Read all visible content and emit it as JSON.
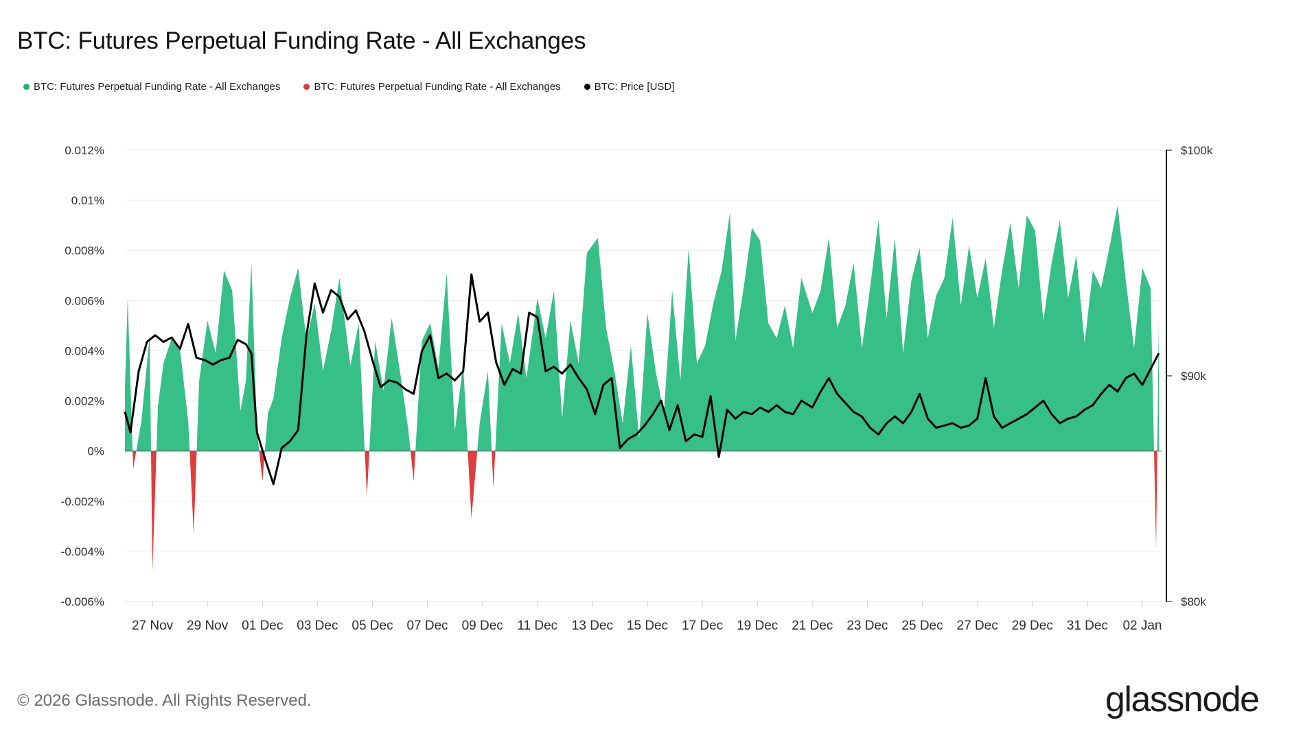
{
  "colors": {
    "positive": "#36bf87",
    "negative": "#e03c3c",
    "price": "#000000",
    "grid": "#ececec"
  },
  "footer": {
    "copyright": "© 2026 Glassnode. All Rights Reserved.",
    "logo": "glassnode"
  },
  "chart_data": {
    "type": "area",
    "title": "BTC: Futures Perpetual Funding Rate - All Exchanges",
    "legend": [
      {
        "label": "BTC: Futures Perpetual Funding Rate - All Exchanges",
        "color": "#23b26d"
      },
      {
        "label": "BTC: Futures Perpetual Funding Rate - All Exchanges",
        "color": "#e03c3c"
      },
      {
        "label": "BTC: Price [USD]",
        "color": "#000000"
      }
    ],
    "x_ticks": [
      "27 Nov",
      "29 Nov",
      "01 Dec",
      "03 Dec",
      "05 Dec",
      "07 Dec",
      "09 Dec",
      "11 Dec",
      "13 Dec",
      "15 Dec",
      "17 Dec",
      "19 Dec",
      "21 Dec",
      "23 Dec",
      "25 Dec",
      "27 Dec",
      "29 Dec",
      "31 Dec",
      "02 Jan"
    ],
    "y_left_ticks": [
      "0.012%",
      "0.01%",
      "0.008%",
      "0.006%",
      "0.004%",
      "0.002%",
      "0%",
      "-0.002%",
      "-0.004%",
      "-0.006%"
    ],
    "y_right_ticks": [
      "$100k",
      "$90k",
      "$80k"
    ],
    "ylim_left": [
      -0.006,
      0.012
    ],
    "ylim_right": [
      80000,
      100000
    ],
    "x_day_range": [
      0,
      37.7
    ],
    "grid": true,
    "funding_rate_series": [
      [
        0.0,
        0.0025
      ],
      [
        0.1,
        0.0061
      ],
      [
        0.3,
        -0.0007
      ],
      [
        0.6,
        0.0012
      ],
      [
        0.9,
        0.0046
      ],
      [
        1.0,
        -0.0048
      ],
      [
        1.2,
        0.0018
      ],
      [
        1.4,
        0.0035
      ],
      [
        1.7,
        0.0045
      ],
      [
        2.0,
        0.0041
      ],
      [
        2.3,
        0.0012
      ],
      [
        2.5,
        -0.0033
      ],
      [
        2.7,
        0.0028
      ],
      [
        3.0,
        0.0052
      ],
      [
        3.3,
        0.0039
      ],
      [
        3.6,
        0.0072
      ],
      [
        3.9,
        0.0064
      ],
      [
        4.2,
        0.0016
      ],
      [
        4.4,
        0.0028
      ],
      [
        4.6,
        0.0075
      ],
      [
        4.8,
        0.0008
      ],
      [
        5.0,
        -0.0012
      ],
      [
        5.2,
        0.0015
      ],
      [
        5.4,
        0.0021
      ],
      [
        5.7,
        0.0045
      ],
      [
        6.0,
        0.0061
      ],
      [
        6.3,
        0.0073
      ],
      [
        6.6,
        0.0044
      ],
      [
        6.9,
        0.0059
      ],
      [
        7.2,
        0.0032
      ],
      [
        7.5,
        0.0048
      ],
      [
        7.8,
        0.0069
      ],
      [
        8.2,
        0.0034
      ],
      [
        8.5,
        0.0051
      ],
      [
        8.8,
        -0.0018
      ],
      [
        9.1,
        0.0044
      ],
      [
        9.4,
        0.0024
      ],
      [
        9.7,
        0.0053
      ],
      [
        10.0,
        0.0032
      ],
      [
        10.3,
        0.0009
      ],
      [
        10.5,
        -0.0012
      ],
      [
        10.8,
        0.0044
      ],
      [
        11.1,
        0.0051
      ],
      [
        11.4,
        0.0033
      ],
      [
        11.7,
        0.0071
      ],
      [
        12.0,
        0.0008
      ],
      [
        12.3,
        0.0035
      ],
      [
        12.6,
        -0.0027
      ],
      [
        12.9,
        0.0011
      ],
      [
        13.2,
        0.0032
      ],
      [
        13.4,
        -0.0015
      ],
      [
        13.7,
        0.0051
      ],
      [
        14.0,
        0.0035
      ],
      [
        14.3,
        0.0055
      ],
      [
        14.6,
        0.0029
      ],
      [
        15.0,
        0.0061
      ],
      [
        15.3,
        0.0045
      ],
      [
        15.6,
        0.0064
      ],
      [
        15.9,
        0.0013
      ],
      [
        16.2,
        0.0052
      ],
      [
        16.5,
        0.0035
      ],
      [
        16.8,
        0.0079
      ],
      [
        17.2,
        0.0085
      ],
      [
        17.5,
        0.0049
      ],
      [
        17.8,
        0.0032
      ],
      [
        18.1,
        0.0011
      ],
      [
        18.4,
        0.0042
      ],
      [
        18.7,
        0.0005
      ],
      [
        19.0,
        0.0055
      ],
      [
        19.3,
        0.0032
      ],
      [
        19.6,
        0.0015
      ],
      [
        19.9,
        0.0064
      ],
      [
        20.2,
        0.0028
      ],
      [
        20.5,
        0.0081
      ],
      [
        20.8,
        0.0035
      ],
      [
        21.1,
        0.0042
      ],
      [
        21.4,
        0.0059
      ],
      [
        21.7,
        0.0072
      ],
      [
        22.0,
        0.0095
      ],
      [
        22.2,
        0.0044
      ],
      [
        22.5,
        0.0065
      ],
      [
        22.8,
        0.0089
      ],
      [
        23.1,
        0.0084
      ],
      [
        23.4,
        0.0051
      ],
      [
        23.7,
        0.0045
      ],
      [
        24.0,
        0.0058
      ],
      [
        24.3,
        0.0041
      ],
      [
        24.6,
        0.0069
      ],
      [
        25.0,
        0.0055
      ],
      [
        25.3,
        0.0064
      ],
      [
        25.6,
        0.0085
      ],
      [
        25.9,
        0.0049
      ],
      [
        26.2,
        0.0058
      ],
      [
        26.5,
        0.0075
      ],
      [
        26.8,
        0.0041
      ],
      [
        27.1,
        0.0065
      ],
      [
        27.4,
        0.0092
      ],
      [
        27.7,
        0.0053
      ],
      [
        28.0,
        0.0085
      ],
      [
        28.3,
        0.0039
      ],
      [
        28.6,
        0.0068
      ],
      [
        28.9,
        0.0081
      ],
      [
        29.2,
        0.0045
      ],
      [
        29.5,
        0.0062
      ],
      [
        29.8,
        0.0069
      ],
      [
        30.1,
        0.0093
      ],
      [
        30.4,
        0.0058
      ],
      [
        30.7,
        0.0082
      ],
      [
        31.0,
        0.0061
      ],
      [
        31.3,
        0.0077
      ],
      [
        31.6,
        0.0049
      ],
      [
        31.9,
        0.0072
      ],
      [
        32.2,
        0.0091
      ],
      [
        32.5,
        0.0065
      ],
      [
        32.8,
        0.0094
      ],
      [
        33.1,
        0.0088
      ],
      [
        33.4,
        0.0052
      ],
      [
        33.7,
        0.0075
      ],
      [
        34.0,
        0.0092
      ],
      [
        34.3,
        0.0061
      ],
      [
        34.6,
        0.0078
      ],
      [
        34.9,
        0.0043
      ],
      [
        35.2,
        0.0072
      ],
      [
        35.5,
        0.0065
      ],
      [
        35.8,
        0.0081
      ],
      [
        36.1,
        0.0098
      ],
      [
        36.4,
        0.0068
      ],
      [
        36.7,
        0.0041
      ],
      [
        37.0,
        0.0073
      ],
      [
        37.3,
        0.0065
      ],
      [
        37.5,
        -0.0039
      ],
      [
        37.6,
        0.0052
      ]
    ],
    "price_series": [
      [
        0.0,
        88400
      ],
      [
        0.2,
        87500
      ],
      [
        0.5,
        90200
      ],
      [
        0.8,
        91500
      ],
      [
        1.1,
        91800
      ],
      [
        1.4,
        91500
      ],
      [
        1.7,
        91700
      ],
      [
        2.0,
        91200
      ],
      [
        2.3,
        92300
      ],
      [
        2.6,
        90800
      ],
      [
        2.9,
        90700
      ],
      [
        3.2,
        90500
      ],
      [
        3.5,
        90700
      ],
      [
        3.8,
        90800
      ],
      [
        4.1,
        91600
      ],
      [
        4.4,
        91400
      ],
      [
        4.6,
        91000
      ],
      [
        4.8,
        87500
      ],
      [
        5.1,
        86300
      ],
      [
        5.4,
        85200
      ],
      [
        5.7,
        86800
      ],
      [
        6.0,
        87100
      ],
      [
        6.3,
        87600
      ],
      [
        6.6,
        91800
      ],
      [
        6.9,
        94100
      ],
      [
        7.2,
        92800
      ],
      [
        7.5,
        93800
      ],
      [
        7.8,
        93500
      ],
      [
        8.1,
        92500
      ],
      [
        8.4,
        92900
      ],
      [
        8.7,
        92000
      ],
      [
        9.0,
        90700
      ],
      [
        9.3,
        89500
      ],
      [
        9.6,
        89800
      ],
      [
        9.9,
        89700
      ],
      [
        10.2,
        89400
      ],
      [
        10.5,
        89200
      ],
      [
        10.8,
        91100
      ],
      [
        11.1,
        91800
      ],
      [
        11.4,
        89900
      ],
      [
        11.7,
        90100
      ],
      [
        12.0,
        89800
      ],
      [
        12.3,
        90200
      ],
      [
        12.6,
        94500
      ],
      [
        12.9,
        92400
      ],
      [
        13.2,
        92800
      ],
      [
        13.5,
        90600
      ],
      [
        13.8,
        89600
      ],
      [
        14.1,
        90300
      ],
      [
        14.4,
        90100
      ],
      [
        14.7,
        92800
      ],
      [
        15.0,
        92600
      ],
      [
        15.3,
        90200
      ],
      [
        15.6,
        90400
      ],
      [
        15.9,
        90100
      ],
      [
        16.2,
        90500
      ],
      [
        16.5,
        89900
      ],
      [
        16.8,
        89400
      ],
      [
        17.1,
        88300
      ],
      [
        17.4,
        89600
      ],
      [
        17.7,
        89900
      ],
      [
        18.0,
        86800
      ],
      [
        18.3,
        87200
      ],
      [
        18.6,
        87400
      ],
      [
        18.9,
        87800
      ],
      [
        19.2,
        88300
      ],
      [
        19.5,
        88900
      ],
      [
        19.8,
        87600
      ],
      [
        20.1,
        88700
      ],
      [
        20.4,
        87100
      ],
      [
        20.7,
        87400
      ],
      [
        21.0,
        87300
      ],
      [
        21.3,
        89100
      ],
      [
        21.6,
        86400
      ],
      [
        21.9,
        88500
      ],
      [
        22.2,
        88100
      ],
      [
        22.5,
        88400
      ],
      [
        22.8,
        88300
      ],
      [
        23.1,
        88600
      ],
      [
        23.4,
        88400
      ],
      [
        23.7,
        88700
      ],
      [
        24.0,
        88400
      ],
      [
        24.3,
        88300
      ],
      [
        24.6,
        88900
      ],
      [
        25.0,
        88600
      ],
      [
        25.3,
        89300
      ],
      [
        25.6,
        89900
      ],
      [
        25.9,
        89200
      ],
      [
        26.2,
        88800
      ],
      [
        26.5,
        88400
      ],
      [
        26.8,
        88200
      ],
      [
        27.1,
        87700
      ],
      [
        27.4,
        87400
      ],
      [
        27.7,
        87900
      ],
      [
        28.0,
        88200
      ],
      [
        28.3,
        87900
      ],
      [
        28.6,
        88400
      ],
      [
        28.9,
        89200
      ],
      [
        29.2,
        88100
      ],
      [
        29.5,
        87700
      ],
      [
        29.8,
        87800
      ],
      [
        30.1,
        87900
      ],
      [
        30.4,
        87700
      ],
      [
        30.7,
        87800
      ],
      [
        31.0,
        88100
      ],
      [
        31.3,
        89900
      ],
      [
        31.6,
        88200
      ],
      [
        31.9,
        87700
      ],
      [
        32.2,
        87900
      ],
      [
        32.5,
        88100
      ],
      [
        32.8,
        88300
      ],
      [
        33.1,
        88600
      ],
      [
        33.4,
        88900
      ],
      [
        33.7,
        88300
      ],
      [
        34.0,
        87900
      ],
      [
        34.3,
        88100
      ],
      [
        34.6,
        88200
      ],
      [
        34.9,
        88500
      ],
      [
        35.2,
        88700
      ],
      [
        35.5,
        89200
      ],
      [
        35.8,
        89600
      ],
      [
        36.1,
        89300
      ],
      [
        36.4,
        89900
      ],
      [
        36.7,
        90100
      ],
      [
        37.0,
        89600
      ],
      [
        37.3,
        90300
      ],
      [
        37.6,
        91000
      ]
    ]
  }
}
